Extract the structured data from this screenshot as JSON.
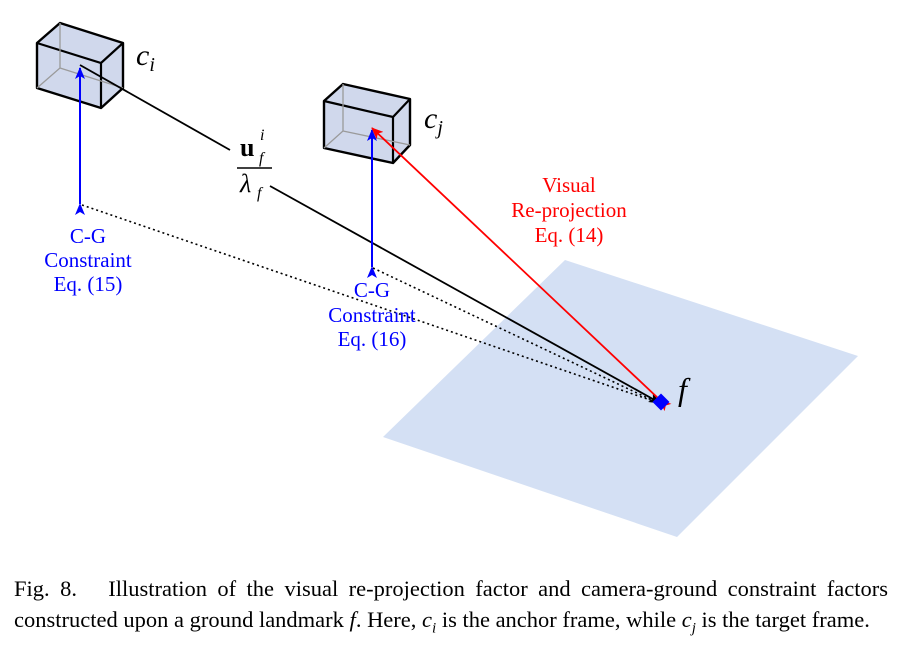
{
  "diagram": {
    "camera_i_label": "c",
    "camera_i_sub": "i",
    "camera_j_label": "c",
    "camera_j_sub": "j",
    "feature_label": "f",
    "bearing_numerator": "u",
    "bearing_sup": "i",
    "bearing_sub": "f",
    "bearing_denominator": "λ",
    "bearing_denominator_sub": "f",
    "cg_constraint_i": [
      "C-G",
      "Constraint",
      "Eq. (15)"
    ],
    "cg_constraint_j": [
      "C-G",
      "Constraint",
      "Eq. (16)"
    ],
    "visual_reprojection": [
      "Visual",
      "Re-projection",
      "Eq. (14)"
    ],
    "colors": {
      "camera_fill": "#d0d8ec",
      "ground_plane": "#d4e0f4",
      "cg_arrow": "#0000ff",
      "reprojection_arrow": "#ff0000",
      "feature_marker": "#0000ff"
    }
  },
  "caption": {
    "fig_label": "Fig. 8.",
    "text_1": "Illustration of the visual re-projection factor and camera-ground constraint factors constructed upon a ground landmark",
    "var_f": "f",
    "text_2": ". Here,",
    "var_ci": "c",
    "var_ci_sub": "i",
    "text_3": "is the anchor frame, while",
    "var_cj": "c",
    "var_cj_sub": "j",
    "text_4": "is the target frame."
  }
}
